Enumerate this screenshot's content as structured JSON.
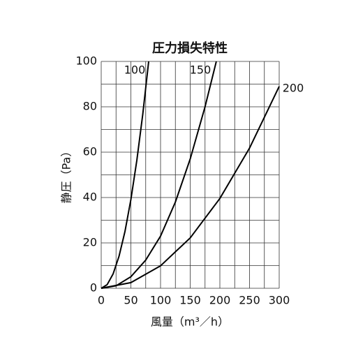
{
  "chart_data": {
    "type": "line",
    "title": "圧力損失特性",
    "xlabel": "風量（m³／h）",
    "ylabel": "静圧（Pa）",
    "xlim": [
      0,
      300
    ],
    "ylim": [
      0,
      100
    ],
    "xticks": [
      0,
      50,
      100,
      150,
      200,
      250,
      300
    ],
    "yticks": [
      0,
      20,
      40,
      60,
      80,
      100
    ],
    "x_minor_grid": [
      25,
      75,
      125,
      175,
      225,
      275
    ],
    "y_minor_grid": [
      10,
      30,
      50,
      70,
      90
    ],
    "grid": true,
    "series": [
      {
        "name": "100",
        "color": "#000000",
        "x": [
          0,
          10,
          20,
          30,
          40,
          50,
          60,
          70,
          80
        ],
        "values": [
          0,
          1.6,
          6.3,
          14.1,
          25,
          39.1,
          56.3,
          76.6,
          100
        ]
      },
      {
        "name": "150",
        "color": "#000000",
        "x": [
          0,
          25,
          50,
          75,
          100,
          125,
          150,
          175,
          194
        ],
        "values": [
          0,
          1.1,
          5.1,
          12.4,
          23,
          38,
          57,
          80,
          100
        ]
      },
      {
        "name": "200",
        "color": "#000000",
        "x": [
          0,
          50,
          100,
          150,
          200,
          250,
          300
        ],
        "values": [
          0,
          2.5,
          9.9,
          22.2,
          39.6,
          61.8,
          89
        ]
      }
    ]
  }
}
